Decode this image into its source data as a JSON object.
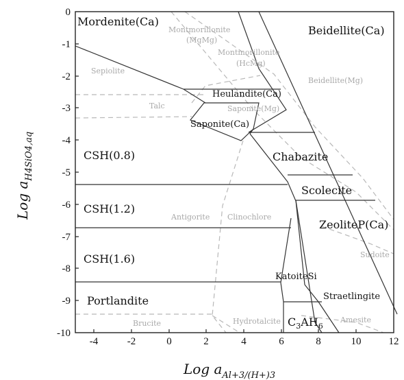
{
  "axes": {
    "xlabel": "Log a",
    "xlabel_sub": "Al+3/(H+)3",
    "ylabel": "Log a",
    "ylabel_sub": "H4SiO4,aq",
    "xlim": [
      -5,
      12
    ],
    "ylim": [
      -10,
      0
    ],
    "x_ticks": [
      "-4",
      "-2",
      "0",
      "2",
      "4",
      "6",
      "8",
      "10",
      "12"
    ],
    "y_ticks": [
      "0",
      "-1",
      "-2",
      "-3",
      "-4",
      "-5",
      "-6",
      "-7",
      "-8",
      "-9",
      "-10"
    ]
  },
  "phases": {
    "mordenite": "Mordenite(Ca)",
    "beidellite_ca": "Beidellite(Ca)",
    "heulandite": "Heulandite(Ca)",
    "saponite_ca": "Saponite(Ca)",
    "csh08": "CSH(0.8)",
    "chabazite": "Chabazite",
    "scolecite": "Scolecite",
    "csh12": "CSH(1.2)",
    "zeolite": "ZeoliteP(Ca)",
    "csh16": "CSH(1.6)",
    "katoite": "KatoiteSi",
    "portlandite": "Portlandite",
    "straetlingite": "Straetlingite",
    "c3ah": "C",
    "c3ah_sub1": "3",
    "c3ah_mid": "AH",
    "c3ah_sub2": "6"
  },
  "metastable": {
    "mont_mg_1": "Montmorillonite",
    "mont_mg_2": "(MgMg)",
    "mont_hc_1": "Montmorillonite",
    "mont_hc_2": "(HcMg)",
    "sepiolite": "Sepiolite",
    "beidellite_mg": "Beidellite(Mg)",
    "talc": "Talc",
    "saponite_mg": "Saponite(Mg)",
    "antigorite": "Antigorite",
    "clinochlore": "Clinochlore",
    "sudoite": "Sudoite",
    "brucite": "Brucite",
    "hydrotalcite": "Hydrotalcite",
    "amesite": "Amesite"
  }
}
